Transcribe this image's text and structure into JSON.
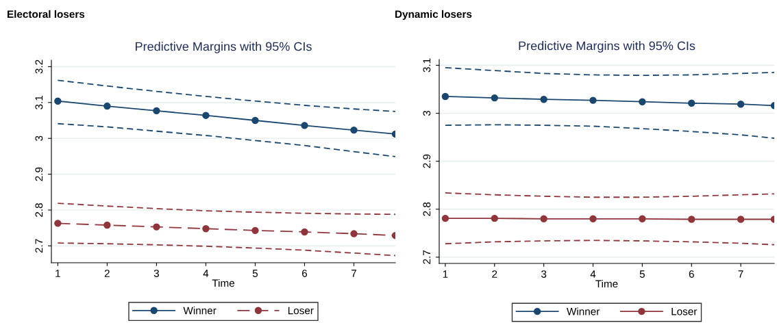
{
  "chart_data": [
    {
      "type": "line",
      "title": "Electoral losers",
      "subtitle": "Predictive Margins with 95% CIs",
      "xlabel": "Time",
      "x": [
        1,
        2,
        3,
        4,
        5,
        6,
        7,
        7.84
      ],
      "series": [
        {
          "name": "Winner",
          "color": "#1a476f",
          "marker": "circle",
          "line_style": "solid",
          "values": [
            3.104,
            3.09,
            3.077,
            3.064,
            3.05,
            3.036,
            3.023,
            3.012
          ]
        },
        {
          "color": "#1a476f",
          "marker": "none",
          "line_style": "dashed",
          "values": [
            3.162,
            3.146,
            3.131,
            3.117,
            3.104,
            3.092,
            3.082,
            3.075
          ]
        },
        {
          "color": "#1a476f",
          "marker": "none",
          "line_style": "dashed",
          "values": [
            3.041,
            3.032,
            3.02,
            3.008,
            2.994,
            2.98,
            2.963,
            2.949
          ]
        },
        {
          "name": "Loser",
          "color": "#90353b",
          "marker": "circle",
          "line_style": "longdash",
          "values": [
            2.763,
            2.758,
            2.753,
            2.748,
            2.743,
            2.739,
            2.734,
            2.729
          ]
        },
        {
          "color": "#90353b",
          "marker": "none",
          "line_style": "dashed",
          "values": [
            2.819,
            2.811,
            2.804,
            2.798,
            2.794,
            2.791,
            2.789,
            2.788
          ]
        },
        {
          "color": "#90353b",
          "marker": "none",
          "line_style": "dashed",
          "values": [
            2.708,
            2.706,
            2.703,
            2.699,
            2.694,
            2.688,
            2.68,
            2.673
          ]
        }
      ],
      "xlim": [
        0.87,
        7.84
      ],
      "xticks": [
        1,
        2,
        3,
        4,
        5,
        6,
        7
      ],
      "ylim": [
        2.653,
        3.218
      ],
      "yticks": [
        2.7,
        2.8,
        2.9,
        3,
        3.1,
        3.2
      ],
      "grid": "y",
      "legend": "bottom"
    },
    {
      "type": "line",
      "title": "Dynamic losers",
      "subtitle": "Predictive Margins with 95% CIs",
      "xlabel": "Time",
      "x": [
        1,
        2,
        3,
        4,
        5,
        6,
        7,
        7.68
      ],
      "series": [
        {
          "name": "Winner",
          "color": "#1a476f",
          "marker": "circle",
          "line_style": "solid",
          "values": [
            3.035,
            3.032,
            3.029,
            3.027,
            3.024,
            3.021,
            3.019,
            3.016
          ]
        },
        {
          "color": "#1a476f",
          "marker": "none",
          "line_style": "dashed",
          "values": [
            3.095,
            3.089,
            3.083,
            3.08,
            3.079,
            3.08,
            3.083,
            3.085
          ]
        },
        {
          "color": "#1a476f",
          "marker": "none",
          "line_style": "dashed",
          "values": [
            2.975,
            2.976,
            2.975,
            2.973,
            2.968,
            2.962,
            2.955,
            2.948
          ]
        },
        {
          "name": "Loser",
          "color": "#90353b",
          "marker": "circle",
          "line_style": "solid",
          "values": [
            2.781,
            2.781,
            2.78,
            2.78,
            2.78,
            2.779,
            2.779,
            2.779
          ]
        },
        {
          "color": "#90353b",
          "marker": "none",
          "line_style": "dashed",
          "values": [
            2.834,
            2.83,
            2.827,
            2.825,
            2.825,
            2.827,
            2.83,
            2.832
          ]
        },
        {
          "color": "#90353b",
          "marker": "none",
          "line_style": "dashed",
          "values": [
            2.728,
            2.732,
            2.734,
            2.735,
            2.734,
            2.732,
            2.729,
            2.726
          ]
        }
      ],
      "xlim": [
        0.876,
        7.68
      ],
      "xticks": [
        1,
        2,
        3,
        4,
        5,
        6,
        7
      ],
      "ylim": [
        2.687,
        3.112
      ],
      "yticks": [
        2.7,
        2.8,
        2.9,
        3,
        3.1
      ],
      "grid": "y",
      "legend": "bottom"
    }
  ]
}
